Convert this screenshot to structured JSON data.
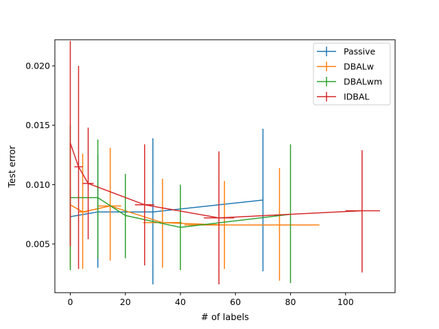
{
  "chart_data": {
    "type": "line",
    "title": "",
    "xlabel": "# of labels",
    "ylabel": "Test error",
    "xlim": [
      -5.6,
      118.0
    ],
    "ylim": [
      0.0009,
      0.0222
    ],
    "xticks": [
      0,
      20,
      40,
      60,
      80,
      100
    ],
    "yticks": [
      0.005,
      0.01,
      0.015,
      0.02
    ],
    "xtick_labels": [
      "0",
      "20",
      "40",
      "60",
      "80",
      "100"
    ],
    "ytick_labels": [
      "0.005",
      "0.010",
      "0.015",
      "0.020"
    ],
    "legend_position": "top-right",
    "grid": false,
    "series": [
      {
        "name": "Passive",
        "color": "#1f77b4",
        "points": [
          {
            "x": 0,
            "y": 0.0073,
            "ylo": 0.0049,
            "yhi": 0.0097,
            "xlo": 0,
            "xhi": 0
          },
          {
            "x": 10,
            "y": 0.0077,
            "ylo": 0.003,
            "yhi": 0.0125,
            "xlo": 10,
            "xhi": 10
          },
          {
            "x": 30,
            "y": 0.0077,
            "ylo": 0.0016,
            "yhi": 0.0139,
            "xlo": 30,
            "xhi": 30
          },
          {
            "x": 70,
            "y": 0.0087,
            "ylo": 0.0027,
            "yhi": 0.0147,
            "xlo": 70,
            "xhi": 70
          }
        ]
      },
      {
        "name": "DBALw",
        "color": "#ff7f0e",
        "points": [
          {
            "x": 0,
            "y": 0.0083,
            "ylo": 0.0031,
            "yhi": 0.0135,
            "xlo": 0,
            "xhi": 0
          },
          {
            "x": 4.5,
            "y": 0.0077,
            "ylo": 0.0029,
            "yhi": 0.0126,
            "xlo": 3,
            "xhi": 6
          },
          {
            "x": 14.5,
            "y": 0.0082,
            "ylo": 0.0036,
            "yhi": 0.0131,
            "xlo": 10,
            "xhi": 18.5
          },
          {
            "x": 33.5,
            "y": 0.0068,
            "ylo": 0.003,
            "yhi": 0.0105,
            "xlo": 26.5,
            "xhi": 40.5
          },
          {
            "x": 56,
            "y": 0.0066,
            "ylo": 0.0029,
            "yhi": 0.0103,
            "xlo": 41.5,
            "xhi": 70.5
          },
          {
            "x": 76,
            "y": 0.0066,
            "ylo": 0.0019,
            "yhi": 0.0114,
            "xlo": 61.5,
            "xhi": 90.5
          }
        ]
      },
      {
        "name": "DBALwm",
        "color": "#2ca02c",
        "points": [
          {
            "x": 0,
            "y": 0.0089,
            "ylo": 0.0028,
            "yhi": 0.015,
            "xlo": 0,
            "xhi": 0
          },
          {
            "x": 10,
            "y": 0.0089,
            "ylo": 0.0038,
            "yhi": 0.0138,
            "xlo": 10,
            "xhi": 10
          },
          {
            "x": 20,
            "y": 0.0074,
            "ylo": 0.0038,
            "yhi": 0.0109,
            "xlo": 20,
            "xhi": 20
          },
          {
            "x": 40,
            "y": 0.0064,
            "ylo": 0.0028,
            "yhi": 0.01,
            "xlo": 40,
            "xhi": 40
          },
          {
            "x": 80,
            "y": 0.0075,
            "ylo": 0.0017,
            "yhi": 0.0134,
            "xlo": 80,
            "xhi": 80
          }
        ]
      },
      {
        "name": "IDBAL",
        "color": "#d62728",
        "points": [
          {
            "x": 0,
            "y": 0.0135,
            "ylo": 0.0048,
            "yhi": 0.0221,
            "xlo": 0,
            "xhi": 0
          },
          {
            "x": 3,
            "y": 0.0115,
            "ylo": 0.0029,
            "yhi": 0.02,
            "xlo": 1.5,
            "xhi": 4.5
          },
          {
            "x": 6.5,
            "y": 0.0101,
            "ylo": 0.0054,
            "yhi": 0.0148,
            "xlo": 4.5,
            "xhi": 8.5
          },
          {
            "x": 27,
            "y": 0.0083,
            "ylo": 0.0032,
            "yhi": 0.0134,
            "xlo": 23.5,
            "xhi": 30.5
          },
          {
            "x": 54,
            "y": 0.0072,
            "ylo": 0.0016,
            "yhi": 0.0128,
            "xlo": 48.5,
            "xhi": 59.5
          },
          {
            "x": 106,
            "y": 0.0078,
            "ylo": 0.0026,
            "yhi": 0.0129,
            "xlo": 100,
            "xhi": 112.5
          }
        ]
      }
    ]
  }
}
